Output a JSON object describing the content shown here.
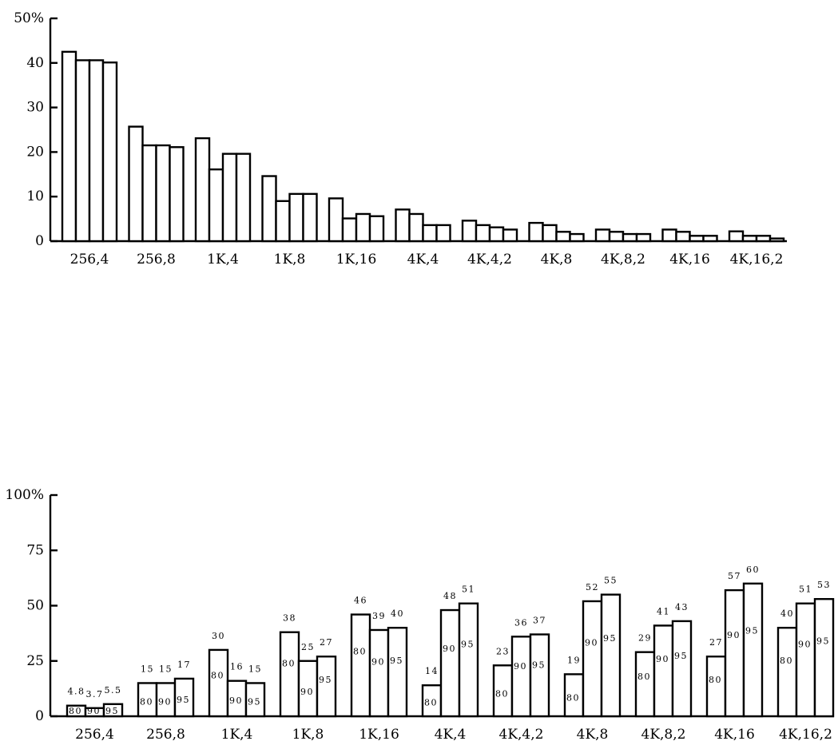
{
  "chart_data": [
    {
      "type": "bar",
      "ylim": [
        0,
        50
      ],
      "y_ticks": [
        "0",
        "10",
        "20",
        "30",
        "40",
        "50%"
      ],
      "y_tick_values": [
        0,
        10,
        20,
        30,
        40,
        50
      ],
      "categories": [
        "256,4",
        "256,8",
        "1K,4",
        "1K,8",
        "1K,16",
        "4K,4",
        "4K,4,2",
        "4K,8",
        "4K,8,2",
        "4K,16",
        "4K,16,2"
      ],
      "series": [
        {
          "values": [
            42.5,
            25.7,
            23.1,
            14.6,
            9.6,
            7.1,
            4.6,
            4.1,
            2.6,
            2.6,
            2.2
          ]
        },
        {
          "values": [
            40.6,
            21.5,
            16.1,
            9.0,
            5.1,
            6.1,
            3.6,
            3.6,
            2.1,
            2.1,
            1.2
          ]
        },
        {
          "values": [
            40.6,
            21.5,
            19.6,
            10.6,
            6.1,
            3.6,
            3.1,
            2.1,
            1.6,
            1.2,
            1.2
          ]
        },
        {
          "values": [
            40.1,
            21.1,
            19.6,
            10.6,
            5.6,
            3.6,
            2.6,
            1.6,
            1.6,
            1.2,
            0.6
          ]
        }
      ],
      "grid": false,
      "legend": "none"
    },
    {
      "type": "bar",
      "ylim": [
        0,
        100
      ],
      "y_ticks": [
        "0",
        "25",
        "50",
        "75",
        "100%"
      ],
      "y_tick_values": [
        0,
        25,
        50,
        75,
        100
      ],
      "categories": [
        "256,4",
        "256,8",
        "1K,4",
        "1K,8",
        "1K,16",
        "4K,4",
        "4K,4,2",
        "4K,8",
        "4K,8,2",
        "4K,16",
        "4K,16,2"
      ],
      "inner_labels": [
        "80",
        "90",
        "95"
      ],
      "series": [
        {
          "values": [
            4.8,
            15,
            30,
            38,
            46,
            14,
            23,
            19,
            29,
            27,
            40
          ],
          "labels": [
            "4.8",
            "15",
            "30",
            "38",
            "46",
            "14",
            "23",
            "19",
            "29",
            "27",
            "40"
          ]
        },
        {
          "values": [
            3.7,
            15,
            16,
            25,
            39,
            48,
            36,
            52,
            41,
            57,
            51
          ],
          "labels": [
            "3.7",
            "15",
            "16",
            "25",
            "39",
            "48",
            "36",
            "52",
            "41",
            "57",
            "51"
          ]
        },
        {
          "values": [
            5.5,
            17,
            15,
            27,
            40,
            51,
            37,
            55,
            43,
            60,
            53
          ],
          "labels": [
            "5.5",
            "17",
            "15",
            "27",
            "40",
            "51",
            "37",
            "55",
            "43",
            "60",
            "53"
          ]
        }
      ],
      "grid": false,
      "legend": "none"
    }
  ]
}
